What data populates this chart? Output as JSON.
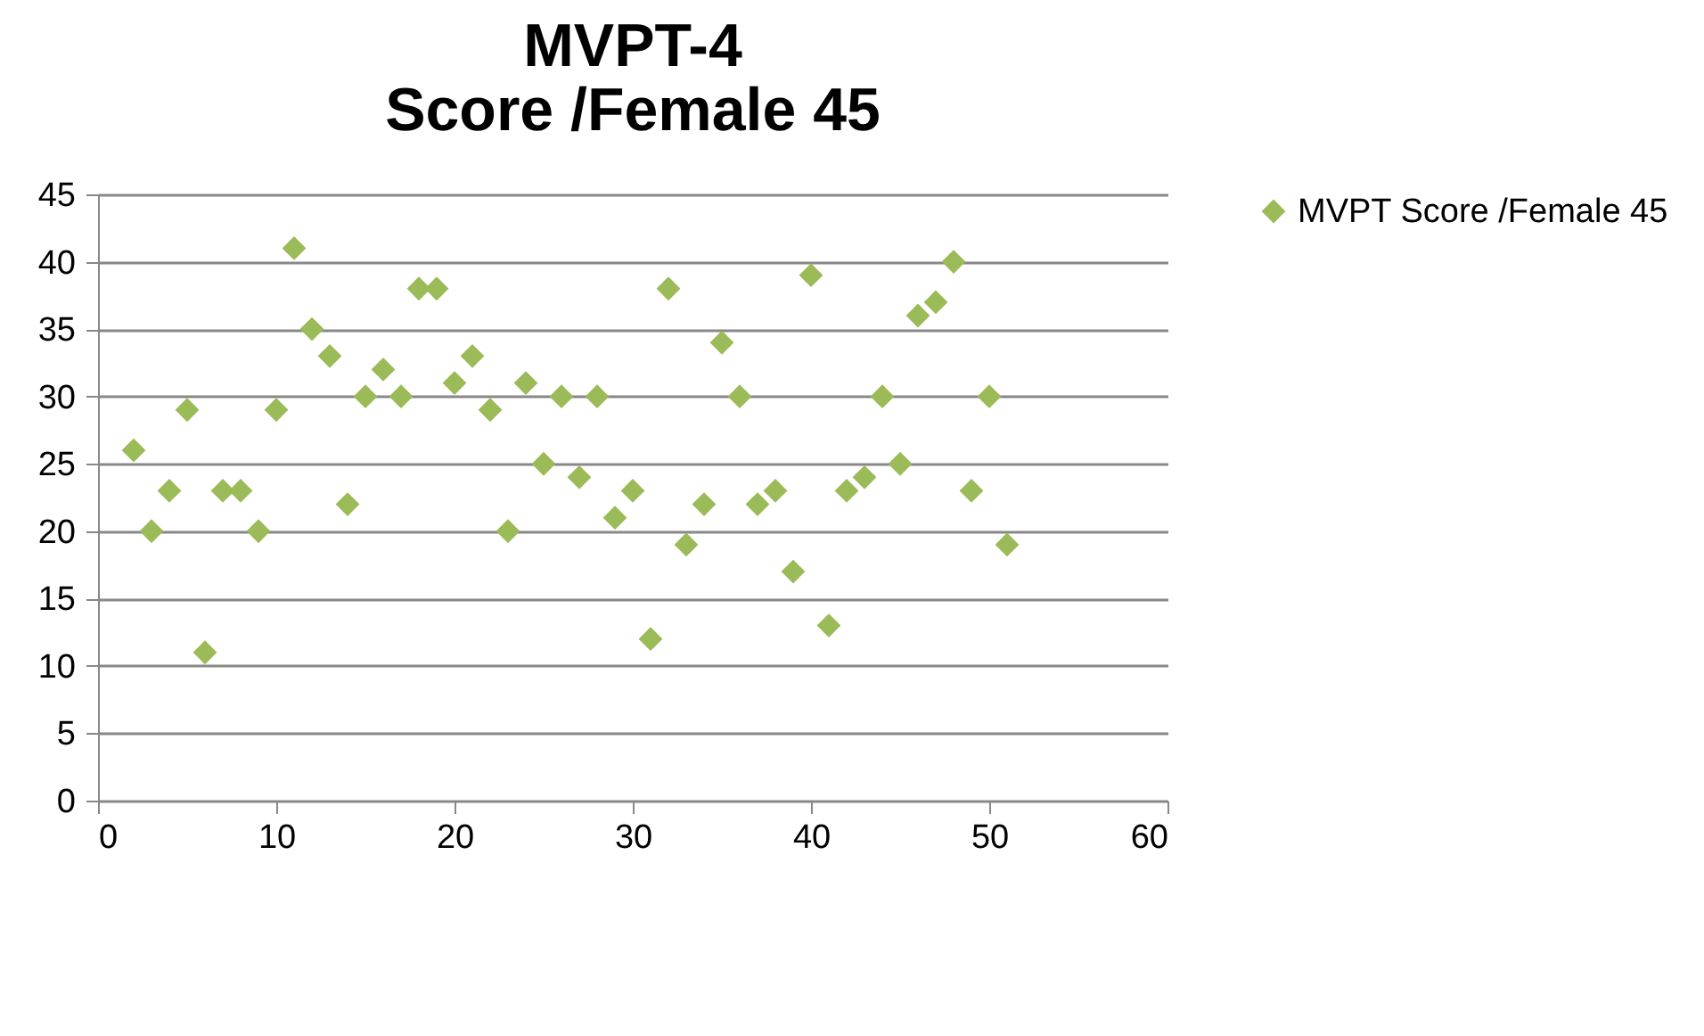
{
  "chart_data": {
    "type": "scatter",
    "title": "MVPT-4\nScore /Female 45",
    "x": [
      2,
      3,
      4,
      5,
      6,
      7,
      8,
      9,
      10,
      11,
      12,
      13,
      14,
      15,
      16,
      17,
      18,
      19,
      20,
      21,
      22,
      23,
      24,
      25,
      26,
      27,
      28,
      29,
      30,
      31,
      32,
      33,
      34,
      35,
      36,
      37,
      38,
      39,
      40,
      41,
      42,
      43,
      44,
      45,
      46,
      47,
      48,
      49,
      50,
      51
    ],
    "series": [
      {
        "name": "MVPT\nScore /Female 45",
        "color": "#9bbb59",
        "values": [
          26,
          20,
          23,
          29,
          11,
          23,
          23,
          20,
          29,
          41,
          35,
          33,
          22,
          30,
          32,
          30,
          38,
          38,
          31,
          33,
          29,
          20,
          31,
          25,
          30,
          24,
          30,
          21,
          23,
          12,
          38,
          19,
          22,
          34,
          30,
          22,
          23,
          17,
          39,
          13,
          23,
          24,
          30,
          25,
          36,
          37,
          40,
          23,
          30,
          19
        ]
      }
    ],
    "xlim": [
      0,
      60
    ],
    "xticks": [
      0,
      10,
      20,
      30,
      40,
      50,
      60
    ],
    "ylim": [
      0,
      45
    ],
    "yticks": [
      0,
      5,
      10,
      15,
      20,
      25,
      30,
      35,
      40,
      45
    ],
    "grid": "y",
    "legend": "right",
    "marker": "diamond"
  }
}
